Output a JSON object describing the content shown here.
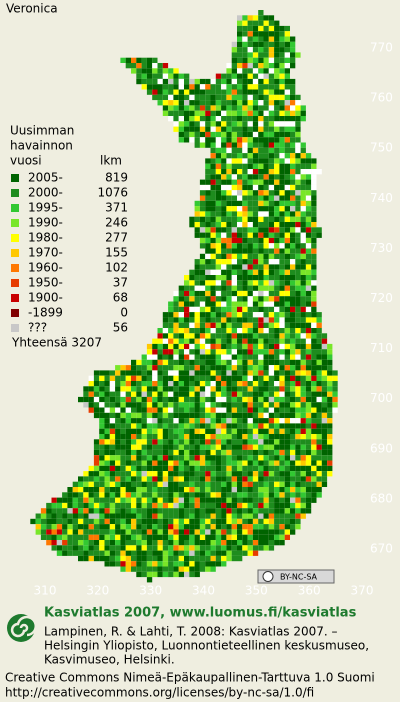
{
  "title": "Veronica",
  "legend": {
    "heading": [
      "Uusimman",
      "havainnon",
      "vuosi"
    ],
    "count_header": "lkm",
    "rows": [
      {
        "label": "2005-",
        "count": "819",
        "color": "#006400"
      },
      {
        "label": "2000-",
        "count": "1076",
        "color": "#1e8c1e"
      },
      {
        "label": "1995-",
        "count": "371",
        "color": "#32c832"
      },
      {
        "label": "1990-",
        "count": "246",
        "color": "#78e628"
      },
      {
        "label": "1980-",
        "count": "277",
        "color": "#ffff00"
      },
      {
        "label": "1970-",
        "count": "155",
        "color": "#ffc800"
      },
      {
        "label": "1960-",
        "count": "102",
        "color": "#ff7800"
      },
      {
        "label": "1950-",
        "count": "37",
        "color": "#e63c00"
      },
      {
        "label": "1900-",
        "count": "68",
        "color": "#c80000"
      },
      {
        "label": "-1899",
        "count": "0",
        "color": "#800000"
      },
      {
        "label": "???",
        "count": "56",
        "color": "#c8c8c8"
      }
    ],
    "total": "Yhteensä 3207"
  },
  "map": {
    "yticks": [
      770,
      760,
      750,
      740,
      730,
      720,
      710,
      700,
      690,
      680,
      670
    ],
    "xticks": [
      310,
      320,
      330,
      340,
      350,
      360,
      370
    ]
  },
  "license_badge": "BY-NC-SA",
  "footer": {
    "heading": "Kasviatlas 2007, www.luomus.fi/kasviatlas",
    "citation": [
      "Lampinen, R. & Lahti, T. 2008: Kasviatlas 2007. –",
      "Helsingin Yliopisto, Luonnontieteellinen keskusmuseo,",
      "Kasvimuseo, Helsinki."
    ],
    "license": [
      "Creative Commons Nimeä-Epäkaupallinen-Tarttuva 1.0 Suomi",
      "http://creativecommons.org/licenses/by-nc-sa/1.0/fi"
    ]
  }
}
